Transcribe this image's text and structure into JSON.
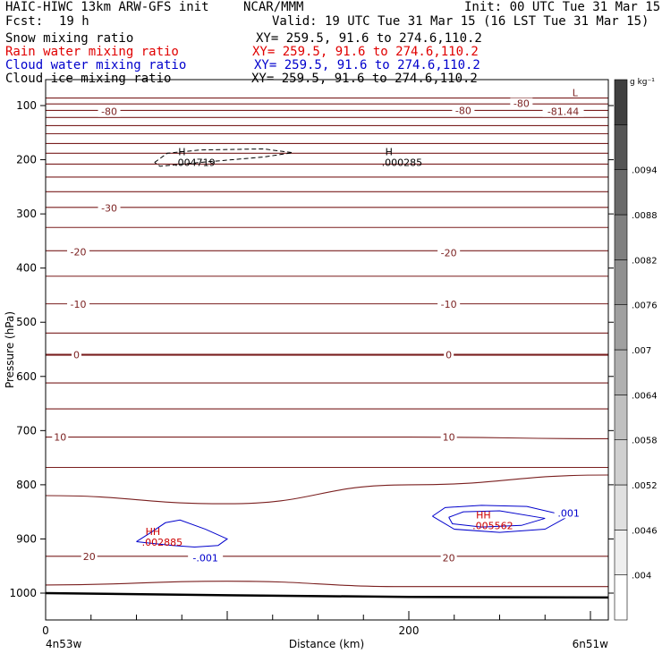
{
  "header": {
    "model": "HAIC-HIWC 13km ARW-GFS init",
    "org": "NCAR/MMM",
    "init": "Init: 00 UTC Tue 31 Mar 15",
    "fcst_label": "Fcst:",
    "fcst_value": "19 h",
    "valid": "Valid: 19 UTC Tue 31 Mar 15 (16 LST Tue 31 Mar 15)",
    "fields": [
      {
        "name": "Snow mixing ratio",
        "xy": "XY= 259.5, 91.6 to 274.6,110.2",
        "color": "#000000"
      },
      {
        "name": "Rain water mixing ratio",
        "xy": "XY= 259.5, 91.6 to 274.6,110.2",
        "color": "#e00000"
      },
      {
        "name": "Cloud water mixing ratio",
        "xy": "XY= 259.5, 91.6 to 274.6,110.2",
        "color": "#0000cc"
      },
      {
        "name": "Cloud ice mixing ratio",
        "xy": "XY= 259.5, 91.6 to 274.6,110.2",
        "color": "#000000"
      }
    ]
  },
  "chart_data": {
    "type": "contour",
    "ylabel": "Pressure (hPa)",
    "xlabel": "Distance (km)",
    "x_start_label": "4n53w",
    "x_end_label": "6n51w",
    "xlim": [
      0,
      300
    ],
    "x_ticks": [
      0,
      200
    ],
    "ylim": [
      1050,
      60
    ],
    "y_ticks": [
      100,
      200,
      300,
      400,
      500,
      600,
      700,
      800,
      900,
      1000
    ],
    "colorbar": {
      "unit": "g kg⁻¹",
      "labels": [
        ".004",
        ".0046",
        ".0052",
        ".0058",
        ".0064",
        ".007",
        ".0076",
        ".0082",
        ".0088",
        ".0094"
      ],
      "colors": [
        "#ffffff",
        "#efefef",
        "#e0e0e0",
        "#d0d0d0",
        "#c0c0c0",
        "#b0b0b0",
        "#a0a0a0",
        "#909090",
        "#808080",
        "#6a6a6a",
        "#555555",
        "#404040"
      ]
    },
    "temperature_contours": {
      "color": "#7a1f1f",
      "levels": [
        {
          "p": [
            86,
            86,
            86,
            86
          ],
          "label": "-80"
        },
        {
          "p": [
            97,
            97,
            97,
            97
          ]
        },
        {
          "p": [
            109,
            109,
            109,
            109
          ],
          "label": "-80"
        },
        {
          "p": [
            122,
            122,
            122,
            122
          ]
        },
        {
          "p": [
            137,
            137,
            137,
            137
          ]
        },
        {
          "p": [
            152,
            152,
            152,
            152
          ]
        },
        {
          "p": [
            170,
            170,
            170,
            170
          ]
        },
        {
          "p": [
            188,
            188,
            188,
            188
          ]
        },
        {
          "p": [
            208,
            208,
            208,
            208
          ]
        },
        {
          "p": [
            232,
            232,
            232,
            232
          ]
        },
        {
          "p": [
            259,
            259,
            259,
            259
          ]
        },
        {
          "p": [
            288,
            288,
            288,
            288
          ],
          "label": "-30"
        },
        {
          "p": [
            325,
            325,
            325,
            325
          ]
        },
        {
          "p": [
            368,
            368,
            368,
            368
          ],
          "label": "-20"
        },
        {
          "p": [
            415,
            415,
            415,
            415
          ]
        },
        {
          "p": [
            466,
            466,
            466,
            466
          ],
          "label": "-10"
        },
        {
          "p": [
            520,
            520,
            520,
            520
          ]
        },
        {
          "p": [
            560,
            560,
            560,
            560
          ],
          "label": "0",
          "bold": true
        },
        {
          "p": [
            612,
            612,
            612,
            612
          ]
        },
        {
          "p": [
            660,
            660,
            660,
            660
          ]
        },
        {
          "p": [
            712,
            712,
            712,
            715
          ],
          "label": "10"
        },
        {
          "p": [
            768,
            768,
            768,
            768
          ]
        },
        {
          "p": [
            820,
            835,
            800,
            782
          ]
        },
        {
          "p": [
            932,
            932,
            932,
            932
          ],
          "label": "20"
        },
        {
          "p": [
            985,
            978,
            988,
            988
          ]
        }
      ]
    },
    "surface_pressure": [
      1000,
      1004,
      1007,
      1008
    ],
    "contour_labels": [
      {
        "x": 35,
        "p": 111,
        "text": "-80"
      },
      {
        "x": 230,
        "p": 109,
        "text": "-80"
      },
      {
        "x": 262,
        "p": 96,
        "text": "-80"
      },
      {
        "x": 285,
        "p": 111,
        "text": "-81.44"
      },
      {
        "x": 35,
        "p": 289,
        "text": "-30"
      },
      {
        "x": 18,
        "p": 370,
        "text": "-20"
      },
      {
        "x": 222,
        "p": 372,
        "text": "-20"
      },
      {
        "x": 18,
        "p": 467,
        "text": "-10"
      },
      {
        "x": 222,
        "p": 467,
        "text": "-10"
      },
      {
        "x": 17,
        "p": 560,
        "text": "0"
      },
      {
        "x": 222,
        "p": 560,
        "text": "0"
      },
      {
        "x": 8,
        "p": 712,
        "text": "10"
      },
      {
        "x": 222,
        "p": 712,
        "text": "10"
      },
      {
        "x": 24,
        "p": 932,
        "text": "20"
      },
      {
        "x": 222,
        "p": 935,
        "text": "20"
      },
      {
        "x": 88,
        "p": 935,
        "text": "-.001",
        "color": "#0000cc"
      },
      {
        "x": 288,
        "p": 852,
        "text": ".001",
        "color": "#0000cc"
      }
    ],
    "extrema": [
      {
        "x": 73,
        "p": 192,
        "mark": "H",
        "value": ".004719",
        "color": "#000000"
      },
      {
        "x": 187,
        "p": 192,
        "mark": "H",
        "value": ".000285",
        "color": "#000000"
      },
      {
        "x": 290,
        "p": 83,
        "mark": "L",
        "color": "#7a1f1f"
      },
      {
        "x": 55,
        "p": 893,
        "mark": "HH",
        "value": ".002885",
        "color": "#cc0000"
      },
      {
        "x": 237,
        "p": 862,
        "mark": "HH",
        "value": ".005562",
        "color": "#cc0000"
      }
    ],
    "snow_contour": {
      "x": [
        60,
        67,
        85,
        120,
        136,
        120,
        85,
        63,
        60
      ],
      "p": [
        205,
        188,
        182,
        180,
        187,
        195,
        205,
        212,
        205
      ]
    },
    "cloud_water_contours": [
      {
        "x": [
          50,
          58,
          66,
          74,
          88,
          100,
          95,
          82,
          70,
          58,
          50
        ],
        "p": [
          905,
          888,
          870,
          865,
          882,
          900,
          912,
          915,
          912,
          908,
          905
        ]
      },
      {
        "x": [
          213,
          220,
          240,
          265,
          288,
          275,
          250,
          225,
          213
        ],
        "p": [
          858,
          842,
          838,
          840,
          858,
          882,
          888,
          882,
          858
        ]
      },
      {
        "x": [
          222,
          230,
          250,
          275,
          262,
          240,
          224,
          222
        ],
        "p": [
          860,
          850,
          848,
          862,
          875,
          878,
          872,
          860
        ]
      }
    ]
  }
}
